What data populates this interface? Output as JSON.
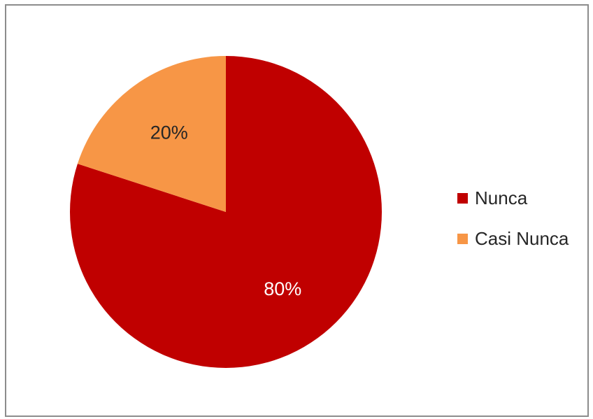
{
  "chart_data": {
    "type": "pie",
    "title": "",
    "categories": [
      "Nunca",
      "Casi Nunca"
    ],
    "values": [
      80,
      20
    ],
    "labels": [
      "80%",
      "20%"
    ],
    "colors": [
      "#c00000",
      "#f79646"
    ],
    "label_colors": [
      "#ffffff",
      "#262626"
    ],
    "start_angle_deg": 0,
    "direction": "clockwise",
    "legend_position": "right"
  }
}
